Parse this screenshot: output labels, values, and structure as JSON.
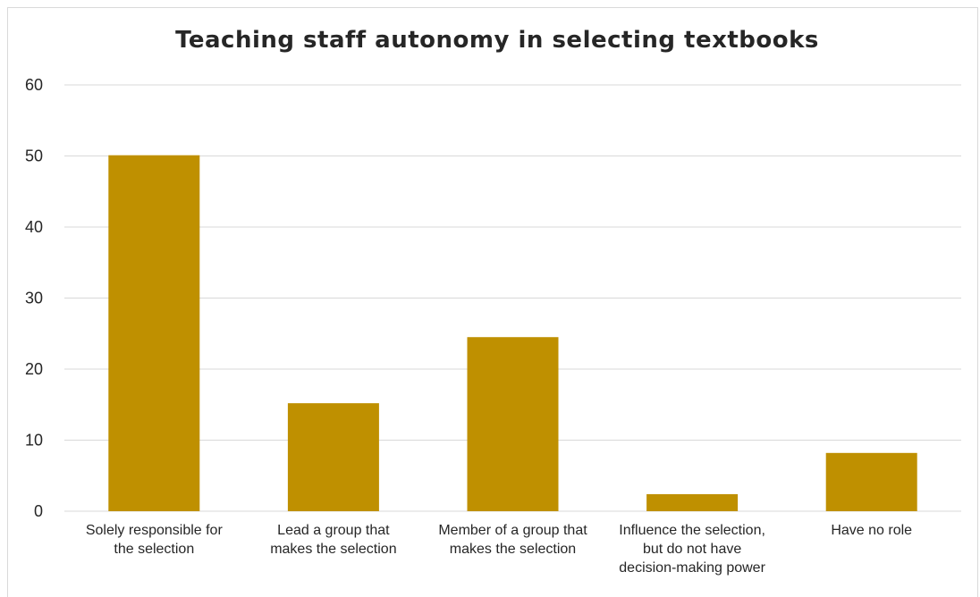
{
  "chart_data": {
    "type": "bar",
    "title": "Teaching staff autonomy in selecting textbooks",
    "categories": [
      [
        "Solely responsible for",
        "the selection"
      ],
      [
        "Lead a group that",
        "makes the selection"
      ],
      [
        "Member of a group that",
        "makes the selection"
      ],
      [
        "Influence the selection,",
        "but do not have",
        "decision-making power"
      ],
      [
        "Have no role"
      ]
    ],
    "values": [
      50.1,
      15.2,
      24.5,
      2.4,
      8.2
    ],
    "ylim": [
      0,
      60
    ],
    "yticks": [
      0,
      10,
      20,
      30,
      40,
      50,
      60
    ],
    "grid": true,
    "bar_color": "#bf9000",
    "grid_color": "#d9d9d9",
    "xlabel": "",
    "ylabel": ""
  }
}
